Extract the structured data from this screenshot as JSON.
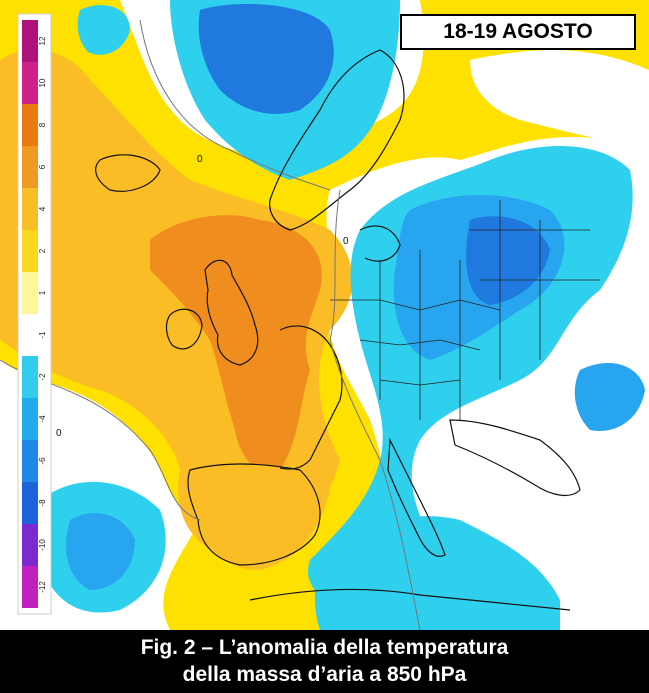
{
  "date_label": "18-19 AGOSTO",
  "caption": {
    "line1": "Fig. 2 – L’anomalia della temperatura",
    "line2": "della massa d’aria a 850 hPa"
  },
  "legend": {
    "labels": [
      "12",
      "10",
      "8",
      "6",
      "4",
      "2",
      "1",
      "-1",
      "-2",
      "-4",
      "-6",
      "-8",
      "-10",
      "-12"
    ],
    "colors": {
      "12": "#b0107a",
      "10": "#d0208a",
      "8": "#e87a10",
      "6": "#f09a22",
      "4": "#f7bf25",
      "2": "#fbd820",
      "1": "#fff59a",
      "-1": "#ffffff",
      "-2": "#33ccee",
      "-4": "#22aaee",
      "-6": "#2288e8",
      "-8": "#1c62d8",
      "-10": "#7a2ad0",
      "-12": "#c020c0"
    }
  },
  "contour_zero_label": "0",
  "map_colors": {
    "warm_light": "#ffe100",
    "warm_mid": "#fbbd25",
    "warm_strong": "#ef8e1f",
    "neutral": "#ffffff",
    "cool_light": "#2fcfee",
    "cool_mid": "#27a6ef",
    "cool_strong": "#1f79df",
    "coast": "#111111"
  }
}
